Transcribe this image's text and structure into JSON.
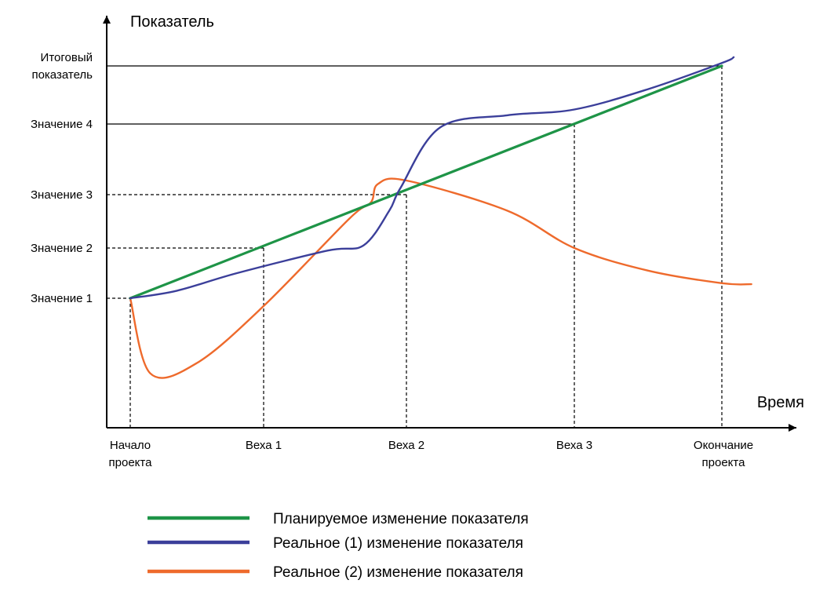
{
  "chart_data": {
    "type": "line",
    "ylabel": "Показатель",
    "xlabel": "Время",
    "x_categories": [
      "Начало проекта",
      "Веха 1",
      "Веха 2",
      "Веха 3",
      "Окончание проекта"
    ],
    "y_categories": [
      "Значение 1",
      "Значение 2",
      "Значение 3",
      "Значение 4",
      "Итоговый показатель"
    ],
    "x_tick_lines": [
      [
        "Начало",
        "проекта"
      ],
      [
        "Веха 1"
      ],
      [
        "Веха 2"
      ],
      [
        "Веха 3"
      ],
      [
        "Окончание",
        "проекта"
      ]
    ],
    "y_tick_lines": [
      [
        "Значение 1"
      ],
      [
        "Значение 2"
      ],
      [
        "Значение 3"
      ],
      [
        "Значение 4"
      ],
      [
        "Итоговый",
        "показатель"
      ]
    ],
    "series": [
      {
        "name": "Планируемое изменение показателя",
        "color": "#1e9447",
        "points": [
          [
            0,
            1
          ],
          [
            4,
            5
          ]
        ]
      },
      {
        "name": "Реальное (1) изменение показателя",
        "color": "#3b3f9a",
        "points": [
          [
            0,
            1
          ],
          [
            0.35,
            1.15
          ],
          [
            0.8,
            1.5
          ],
          [
            1.45,
            1.95
          ],
          [
            1.7,
            2.05
          ],
          [
            1.88,
            2.7
          ],
          [
            1.96,
            3.1
          ],
          [
            2.2,
            3.95
          ],
          [
            2.6,
            4.15
          ],
          [
            3.0,
            4.25
          ],
          [
            3.5,
            4.6
          ],
          [
            4.0,
            5.05
          ],
          [
            4.08,
            5.15
          ]
        ]
      },
      {
        "name": "Реальное (2) изменение показателя",
        "color": "#ee6a2c",
        "points": [
          [
            0,
            1
          ],
          [
            0.15,
            -0.45
          ],
          [
            0.5,
            -0.25
          ],
          [
            1.0,
            0.85
          ],
          [
            1.6,
            2.55
          ],
          [
            1.75,
            2.85
          ],
          [
            1.8,
            3.15
          ],
          [
            2.0,
            3.2
          ],
          [
            2.6,
            2.7
          ],
          [
            3.0,
            2.0
          ],
          [
            3.5,
            1.55
          ],
          [
            4.0,
            1.3
          ],
          [
            4.2,
            1.28
          ]
        ]
      }
    ],
    "grid": false,
    "legend_position": "bottom"
  }
}
